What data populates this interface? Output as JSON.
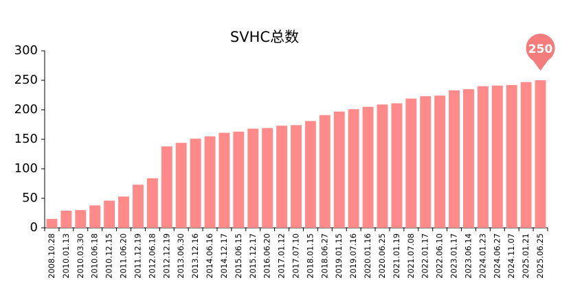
{
  "chart_data": {
    "type": "bar",
    "title": "SVHC总数",
    "categories": [
      "2008.10.28",
      "2010.01.13",
      "2010.03.30",
      "2010.06.18",
      "2010.12.15",
      "2011.06.20",
      "2011.12.19",
      "2012.06.18",
      "2012.12.19",
      "2013.06.30",
      "2013.12.16",
      "2014.06.16",
      "2014.12.17",
      "2015.06.15",
      "2015.12.17",
      "2016.06.20",
      "2017.01.12",
      "2017.07.10",
      "2018.01.15",
      "2018.06.27",
      "2019.01.15",
      "2019.07.16",
      "2020.01.16",
      "2020.06.25",
      "2021.01.19",
      "2021.07.08",
      "2022.01.17",
      "2022.06.10",
      "2023.01.17",
      "2023.06.14",
      "2024.01.23",
      "2024.06.27",
      "2024.11.07",
      "2025.01.21",
      "2025.06.25"
    ],
    "values": [
      15,
      29,
      30,
      38,
      46,
      53,
      73,
      84,
      138,
      144,
      151,
      155,
      161,
      163,
      168,
      169,
      173,
      174,
      181,
      191,
      197,
      201,
      205,
      209,
      211,
      219,
      223,
      224,
      233,
      235,
      240,
      241,
      242,
      247,
      250
    ],
    "color": "#ff8a8a",
    "ylim": [
      0,
      300
    ],
    "yticks": [
      0,
      50,
      100,
      150,
      200,
      250,
      300
    ],
    "grid": false
  }
}
